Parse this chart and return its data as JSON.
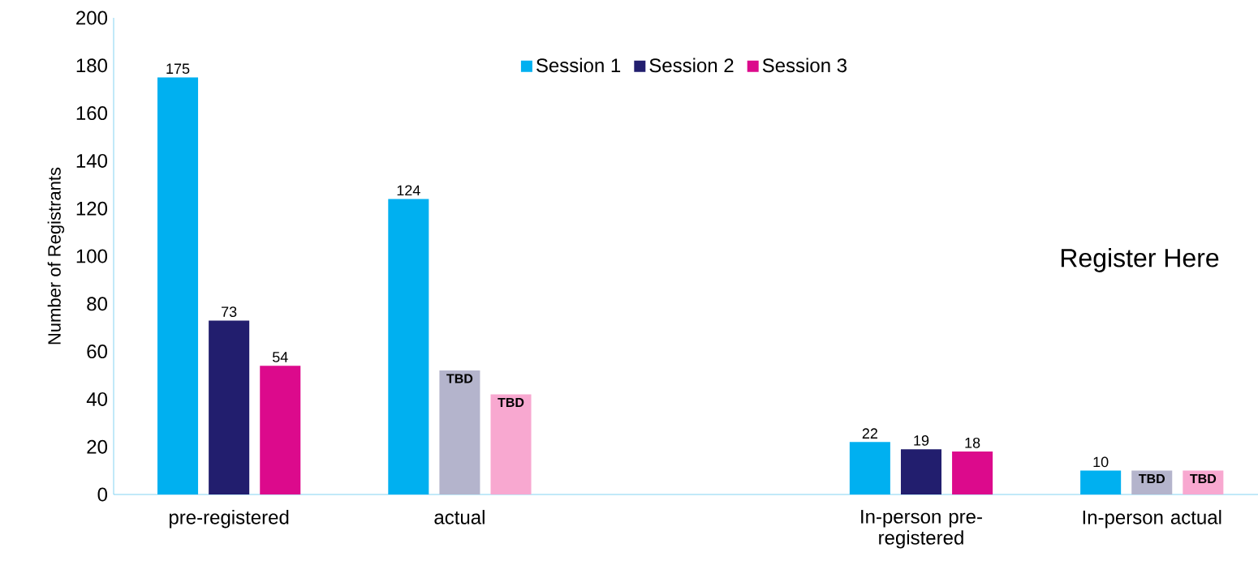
{
  "chart_data": {
    "type": "bar",
    "ylabel": "Number of Registrants",
    "categories": [
      "pre-registered",
      "actual",
      null,
      "In-person pre-registered",
      "In-person actual"
    ],
    "series": [
      {
        "name": "Session 1",
        "color": "#00b0f0",
        "values": [
          175,
          124,
          null,
          22,
          10
        ],
        "value_labels": [
          "175",
          "124",
          null,
          "22",
          "10"
        ]
      },
      {
        "name": "Session 2",
        "color": "#221e6e",
        "colors": [
          "#221e6e",
          "#b4b4cc",
          null,
          "#221e6e",
          "#b4b4cc"
        ],
        "values": [
          73,
          52,
          null,
          19,
          10
        ],
        "value_labels": [
          "73",
          "TBD",
          null,
          "19",
          "TBD"
        ]
      },
      {
        "name": "Session 3",
        "color": "#dc0a8c",
        "colors": [
          "#dc0a8c",
          "#f8a8d0",
          null,
          "#dc0a8c",
          "#f8a8d0"
        ],
        "values": [
          54,
          42,
          null,
          18,
          10
        ],
        "value_labels": [
          "54",
          "TBD",
          null,
          "18",
          "TBD"
        ]
      }
    ],
    "ylim": [
      0,
      200
    ],
    "yticks": [
      0,
      20,
      40,
      60,
      80,
      100,
      120,
      140,
      160,
      180,
      200
    ],
    "legend": "top",
    "grid": false,
    "annotations": [
      "Register Here"
    ]
  }
}
